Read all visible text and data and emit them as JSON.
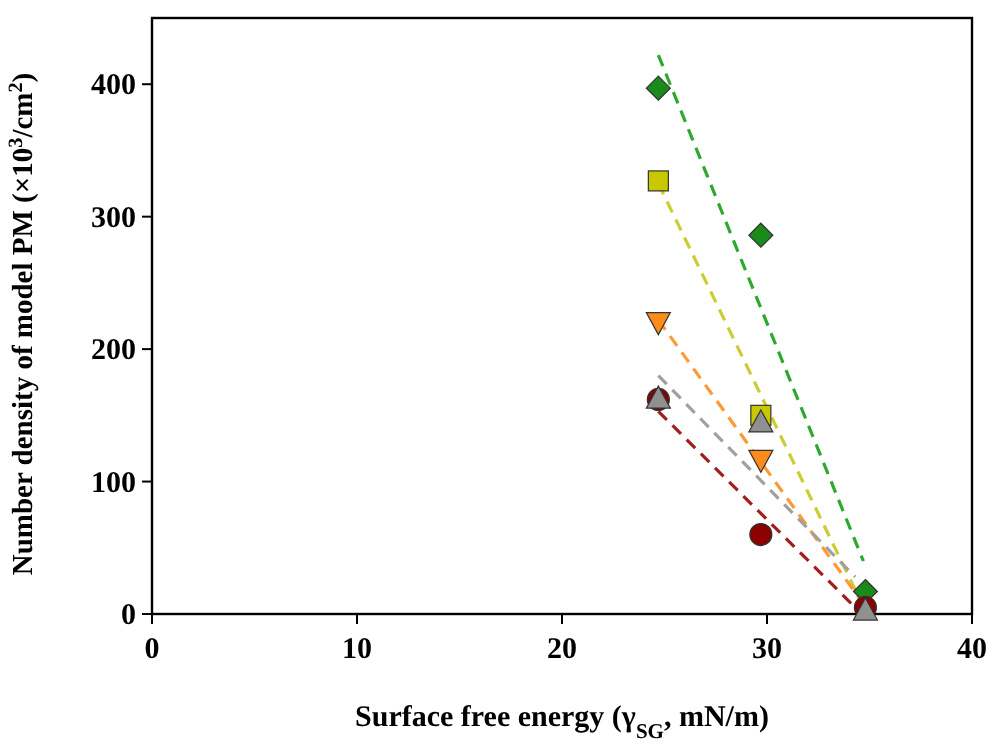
{
  "chart_data": {
    "type": "scatter",
    "xlabel": "Surface free energy (γ$_{SG}$, mN/m)",
    "ylabel": "Number density of model PM (×10$^{3}$/cm$^{2}$)",
    "xlim": [
      0,
      40
    ],
    "ylim": [
      0,
      450
    ],
    "xticks": [
      0,
      10,
      20,
      30,
      40
    ],
    "yticks": [
      0,
      100,
      200,
      300,
      400
    ],
    "grid": false,
    "x": [
      24.7,
      29.7,
      34.8
    ],
    "series": [
      {
        "marker": "diamond",
        "color": "#1a8a1a",
        "values": [
          397,
          286,
          17
        ]
      },
      {
        "marker": "square",
        "color": "#c8c800",
        "values": [
          327,
          150,
          null
        ]
      },
      {
        "marker": "triangle-down",
        "color": "#ff8c1a",
        "values": [
          220,
          116,
          null
        ]
      },
      {
        "marker": "circle",
        "color": "#8b0000",
        "values": [
          162,
          60,
          5
        ]
      },
      {
        "marker": "triangle",
        "color": "#909090",
        "values": [
          163,
          145,
          3
        ]
      },
      {
        "type": "line",
        "marker": "none",
        "line_style": "dashed",
        "color": "#2ea82e",
        "x": [
          24.7,
          34.7
        ],
        "values": [
          422,
          40
        ]
      },
      {
        "type": "line",
        "marker": "none",
        "line_style": "dashed",
        "color": "#cccc33",
        "x": [
          24.7,
          34.5
        ],
        "values": [
          325,
          12
        ]
      },
      {
        "type": "line",
        "marker": "none",
        "line_style": "dashed",
        "color": "#ff9933",
        "x": [
          24.7,
          34.5
        ],
        "values": [
          222,
          12
        ]
      },
      {
        "type": "line",
        "marker": "none",
        "line_style": "dashed",
        "color": "#a0a0a0",
        "x": [
          24.7,
          34.3
        ],
        "values": [
          180,
          28
        ]
      },
      {
        "type": "line",
        "marker": "none",
        "line_style": "dashed",
        "color": "#a02020",
        "x": [
          24.7,
          34.3
        ],
        "values": [
          153,
          5
        ]
      }
    ]
  }
}
